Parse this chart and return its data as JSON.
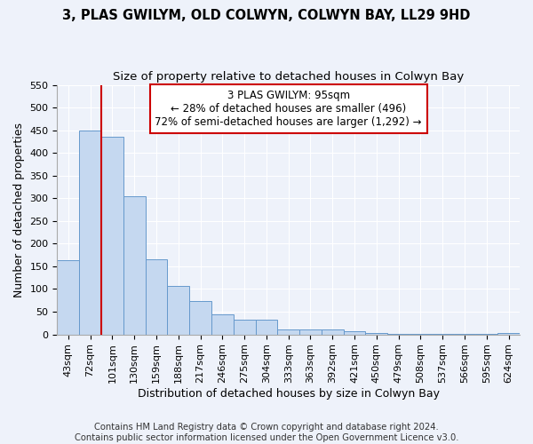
{
  "title1": "3, PLAS GWILYM, OLD COLWYN, COLWYN BAY, LL29 9HD",
  "title2": "Size of property relative to detached houses in Colwyn Bay",
  "xlabel": "Distribution of detached houses by size in Colwyn Bay",
  "ylabel": "Number of detached properties",
  "footer1": "Contains HM Land Registry data © Crown copyright and database right 2024.",
  "footer2": "Contains public sector information licensed under the Open Government Licence v3.0.",
  "bar_labels": [
    "43sqm",
    "72sqm",
    "101sqm",
    "130sqm",
    "159sqm",
    "188sqm",
    "217sqm",
    "246sqm",
    "275sqm",
    "304sqm",
    "333sqm",
    "363sqm",
    "392sqm",
    "421sqm",
    "450sqm",
    "479sqm",
    "508sqm",
    "537sqm",
    "566sqm",
    "595sqm",
    "624sqm"
  ],
  "bar_values": [
    163,
    450,
    436,
    305,
    165,
    106,
    73,
    45,
    32,
    32,
    11,
    10,
    10,
    8,
    4,
    2,
    2,
    1,
    1,
    1,
    4
  ],
  "bar_color": "#c5d8f0",
  "bar_edge_color": "#6699cc",
  "annotation_box_text": "3 PLAS GWILYM: 95sqm\n← 28% of detached houses are smaller (496)\n72% of semi-detached houses are larger (1,292) →",
  "annotation_box_color": "#ffffff",
  "annotation_box_edge_color": "#cc0000",
  "annotation_line_color": "#cc0000",
  "ylim": [
    0,
    550
  ],
  "bg_color": "#eef2fa",
  "grid_color": "#ffffff",
  "title_fontsize": 10.5,
  "subtitle_fontsize": 9.5,
  "annotation_fontsize": 8.5,
  "axis_label_fontsize": 9,
  "tick_fontsize": 8,
  "footer_fontsize": 7.2
}
